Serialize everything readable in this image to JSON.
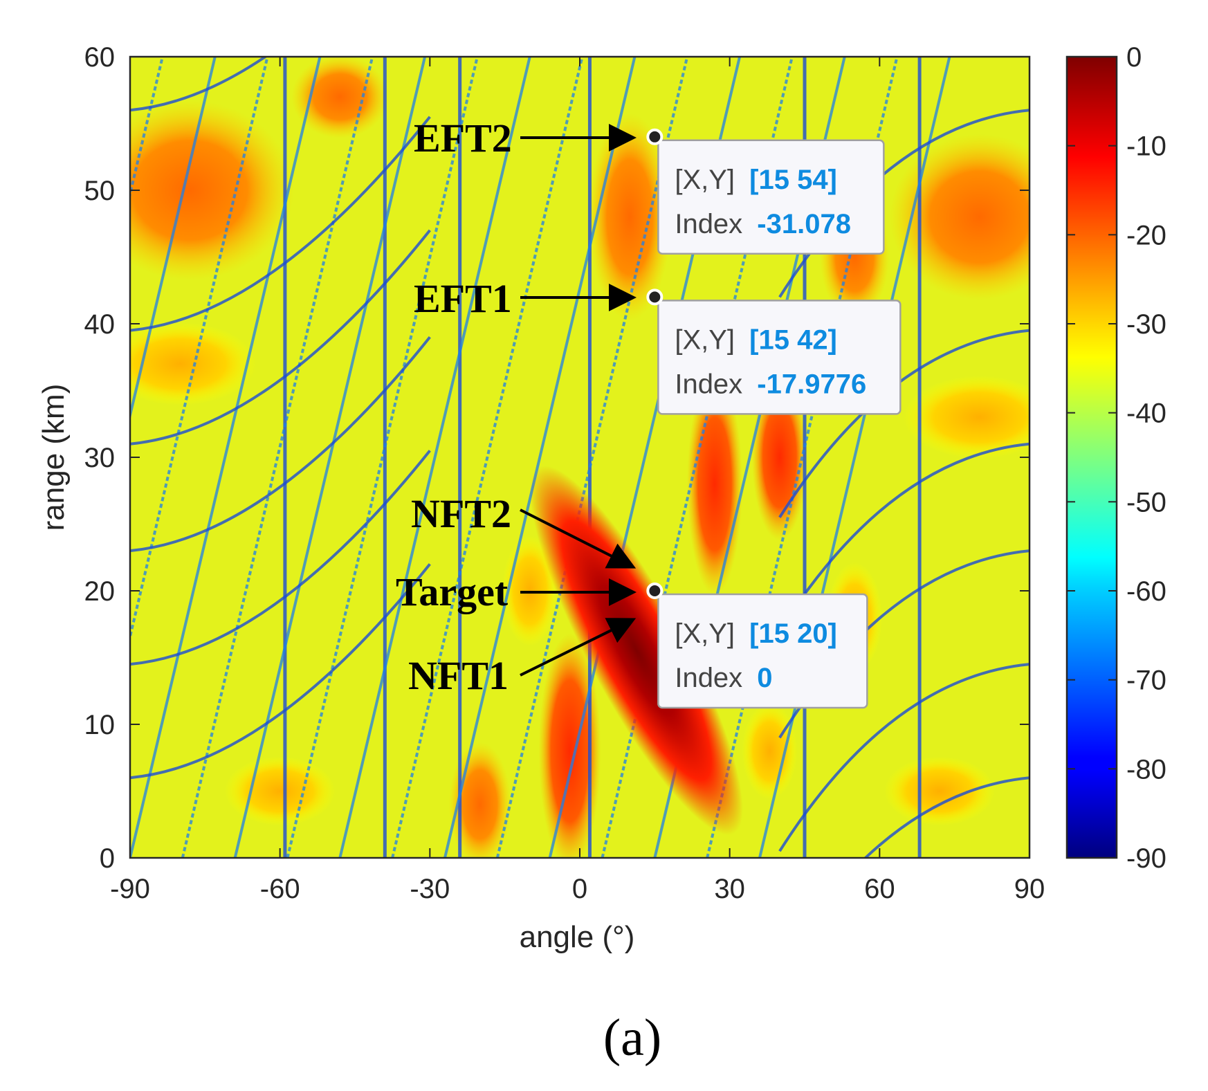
{
  "chart_data": {
    "type": "heatmap",
    "title": "",
    "panel_label": "(a)",
    "xlabel": "angle (°)",
    "ylabel": "range (km)",
    "xlim": [
      -90,
      90
    ],
    "ylim": [
      0,
      60
    ],
    "xticks": [
      -90,
      -60,
      -30,
      0,
      30,
      60,
      90
    ],
    "yticks": [
      0,
      10,
      20,
      30,
      40,
      50,
      60
    ],
    "colorbar": {
      "clim": [
        -90,
        0
      ],
      "ticks": [
        0,
        -10,
        -20,
        -30,
        -40,
        -50,
        -60,
        -70,
        -80,
        -90
      ],
      "colormap": "jet"
    },
    "target": {
      "angle": 15,
      "range": 20
    },
    "datatips": [
      {
        "x": 15,
        "y": 54,
        "xy_label": "[X,Y]",
        "xy_value": "[15 54]",
        "index_label": "Index",
        "index_value": "-31.078"
      },
      {
        "x": 15,
        "y": 42,
        "xy_label": "[X,Y]",
        "xy_value": "[15 42]",
        "index_label": "Index",
        "index_value": "-17.9776"
      },
      {
        "x": 15,
        "y": 20,
        "xy_label": "[X,Y]",
        "xy_value": "[15 20]",
        "index_label": "Index",
        "index_value": "0"
      }
    ],
    "annotations": [
      {
        "text": "EFT2",
        "points_to": [
          15,
          54
        ]
      },
      {
        "text": "EFT1",
        "points_to": [
          15,
          42
        ]
      },
      {
        "text": "NFT2",
        "points_to": [
          15,
          22
        ]
      },
      {
        "text": "Target",
        "points_to": [
          15,
          20
        ]
      },
      {
        "text": "NFT1",
        "points_to": [
          15,
          18
        ]
      }
    ]
  }
}
